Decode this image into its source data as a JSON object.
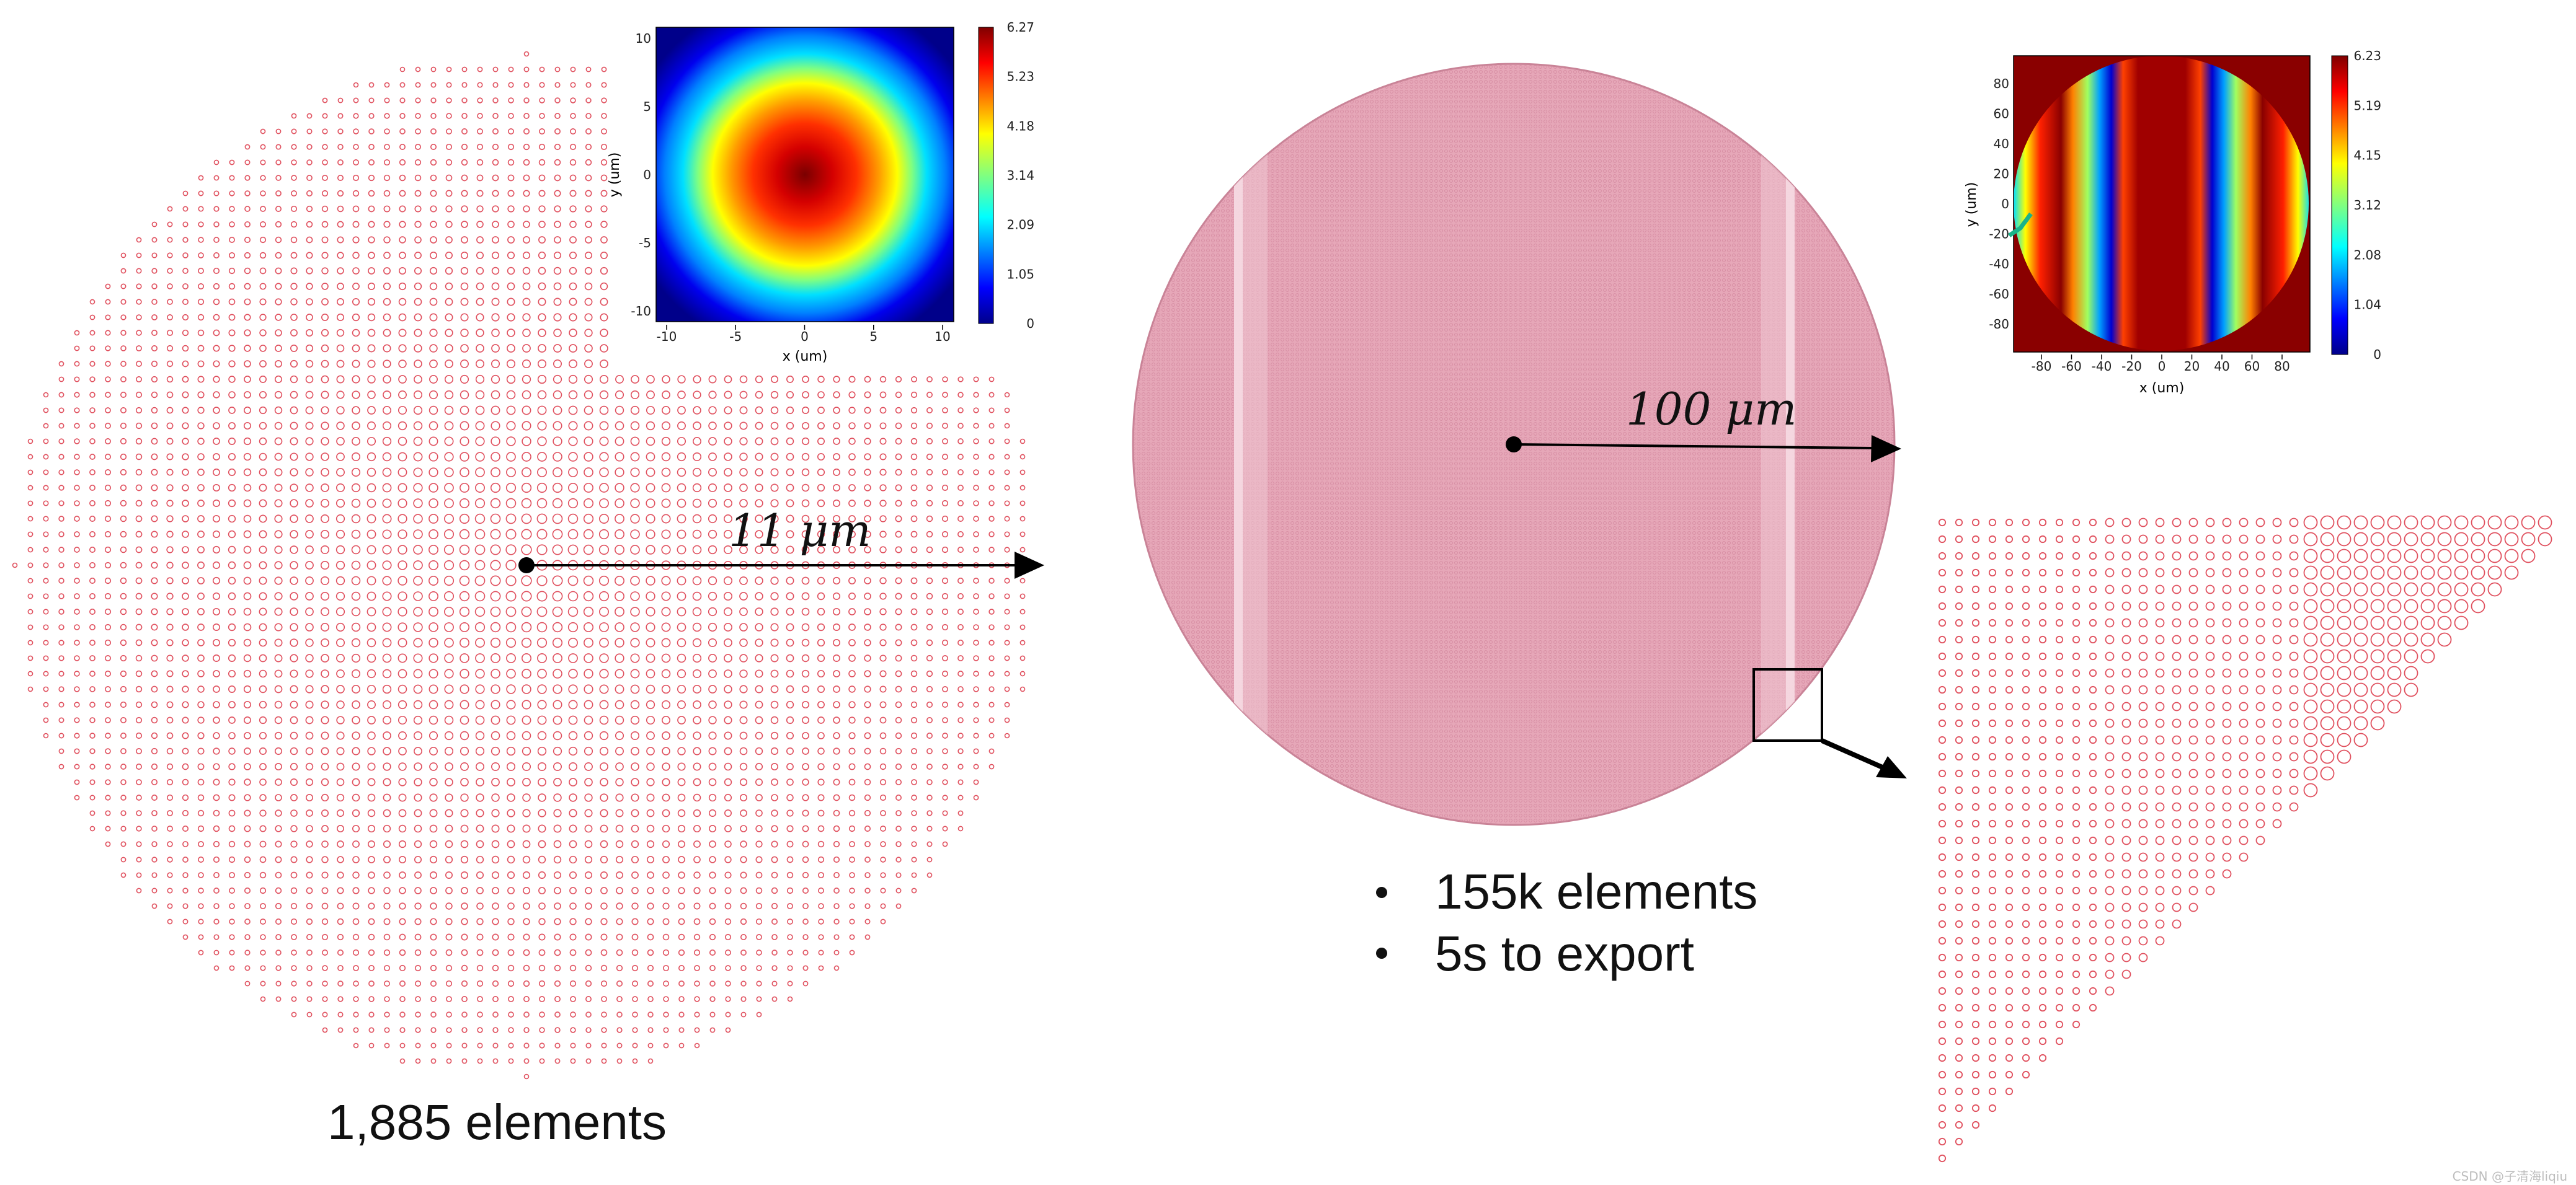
{
  "left_panel": {
    "radius_label": "11 μm",
    "count_caption": "1,885 elements",
    "inset": {
      "xlabel": "x (um)",
      "ylabel": "y (um)",
      "x_ticks": [
        "-10",
        "-5",
        "0",
        "5",
        "10"
      ],
      "y_ticks": [
        "10",
        "5",
        "0",
        "-5",
        "-10"
      ],
      "colorbar_ticks": [
        "6.27",
        "5.23",
        "4.18",
        "3.14",
        "2.09",
        "1.05",
        "0"
      ]
    }
  },
  "center_panel": {
    "radius_label": "100 μm",
    "bullets": [
      "155k elements",
      "5s to export"
    ]
  },
  "right_panel": {
    "inset": {
      "xlabel": "x (um)",
      "ylabel": "y (um)",
      "x_ticks": [
        "-80",
        "-60",
        "-40",
        "-20",
        "0",
        "20",
        "40",
        "60",
        "80"
      ],
      "y_ticks": [
        "80",
        "60",
        "40",
        "20",
        "0",
        "-20",
        "-40",
        "-60",
        "-80"
      ],
      "colorbar_ticks": [
        "6.23",
        "5.19",
        "4.15",
        "3.12",
        "2.08",
        "1.04",
        "0"
      ]
    }
  },
  "watermark": "CSDN @子清海liqiu",
  "colors": {
    "element_stroke": "#e0505e",
    "disk_fill": "#e6a7b8",
    "arrow": "#000000"
  }
}
